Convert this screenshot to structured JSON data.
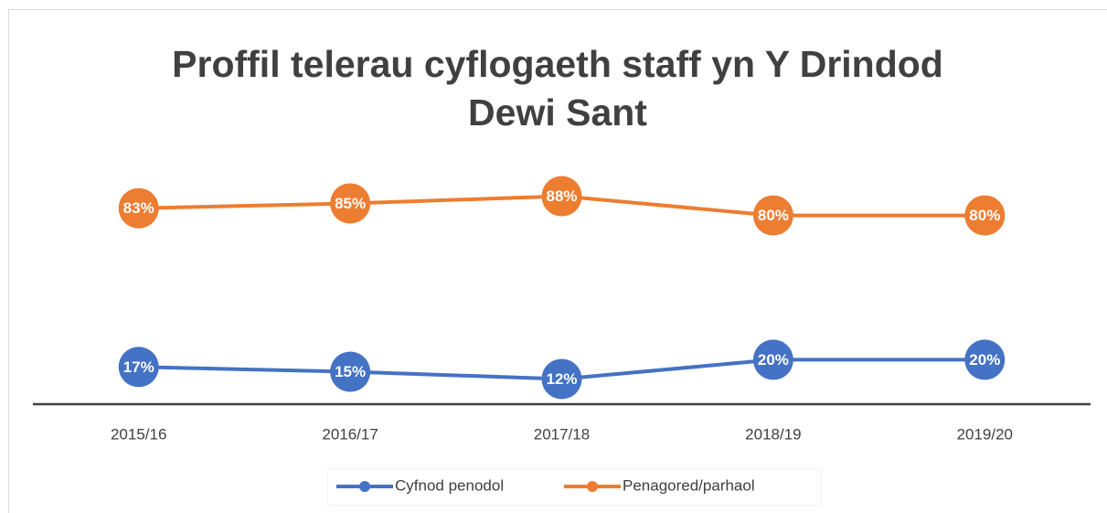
{
  "chart_data": {
    "type": "line",
    "title": "Proffil telerau cyflogaeth staff yn Y Drindod Dewi Sant",
    "categories": [
      "2015/16",
      "2016/17",
      "2017/18",
      "2018/19",
      "2019/20"
    ],
    "ylim": [
      0,
      100
    ],
    "series": [
      {
        "name": "Cyfnod penodol",
        "color": "#4472c4",
        "values": [
          17,
          15,
          12,
          20,
          20
        ],
        "value_labels": [
          "17%",
          "15%",
          "12%",
          "20%",
          "20%"
        ]
      },
      {
        "name": "Penagored/parhaol",
        "color": "#ed7d31",
        "values": [
          83,
          85,
          88,
          80,
          80
        ],
        "value_labels": [
          "83%",
          "85%",
          "88%",
          "80%",
          "80%"
        ]
      }
    ],
    "legend": "bottom",
    "grid": false
  }
}
